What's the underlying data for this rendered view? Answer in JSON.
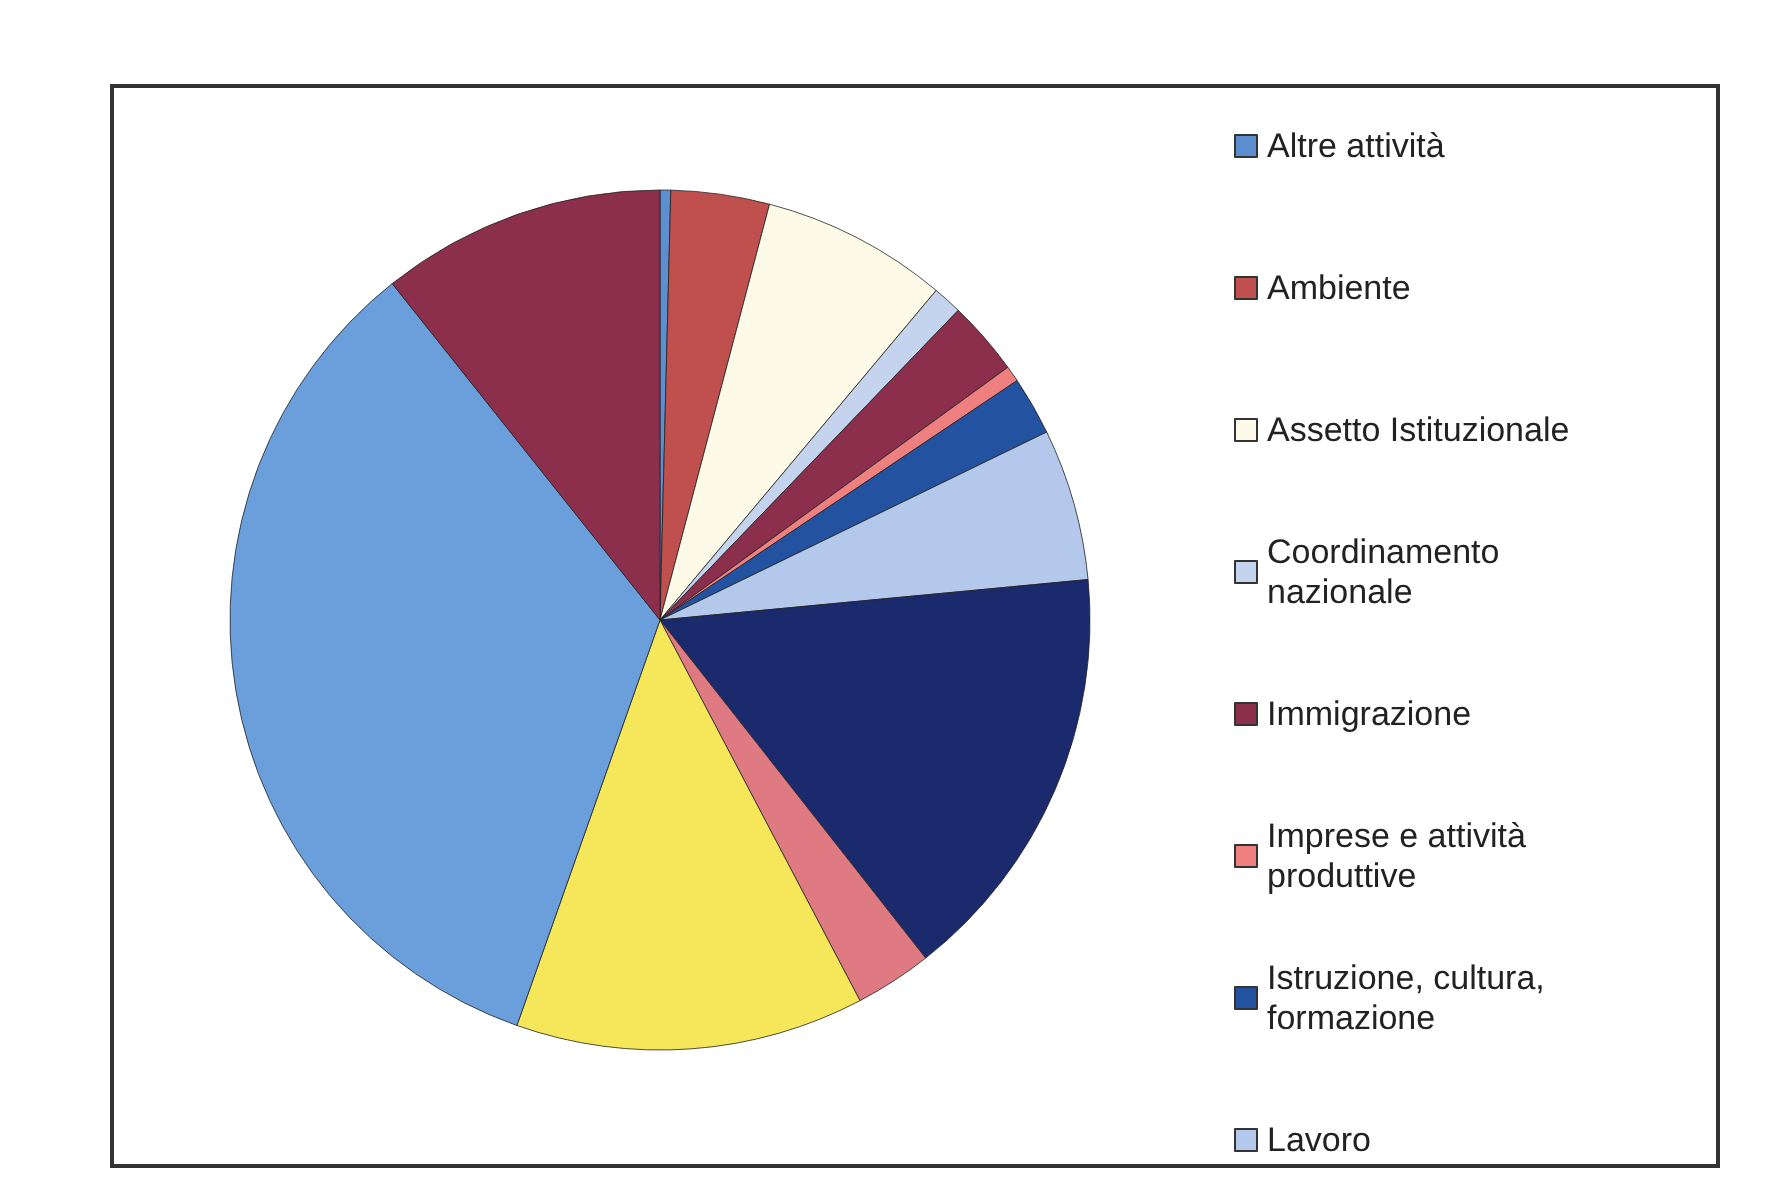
{
  "chart_data": {
    "type": "pie",
    "legend": "right",
    "categories": [
      "Altre attività",
      "Ambiente",
      "Assetto Istituzionale",
      "Coordinamento nazionale",
      "Immigrazione",
      "Imprese e attività produttive",
      "Istruzione, cultura, formazione",
      "Lavoro",
      null,
      null,
      null,
      null,
      null
    ],
    "values": [
      0.4,
      3.7,
      7.0,
      1.1,
      2.8,
      0.6,
      2.2,
      5.7,
      15.9,
      2.9,
      13.1,
      33.9,
      10.7
    ],
    "colors": [
      "#5b8fd0",
      "#c0504d",
      "#fdfbe8",
      "#c4d4ee",
      "#8c2f4c",
      "#f08080",
      "#2352a0",
      "#b4c8ec",
      "#1a2a6c",
      "#e07a82",
      "#f6e65a",
      "#6a9fdc",
      "#8c2f4c"
    ]
  }
}
